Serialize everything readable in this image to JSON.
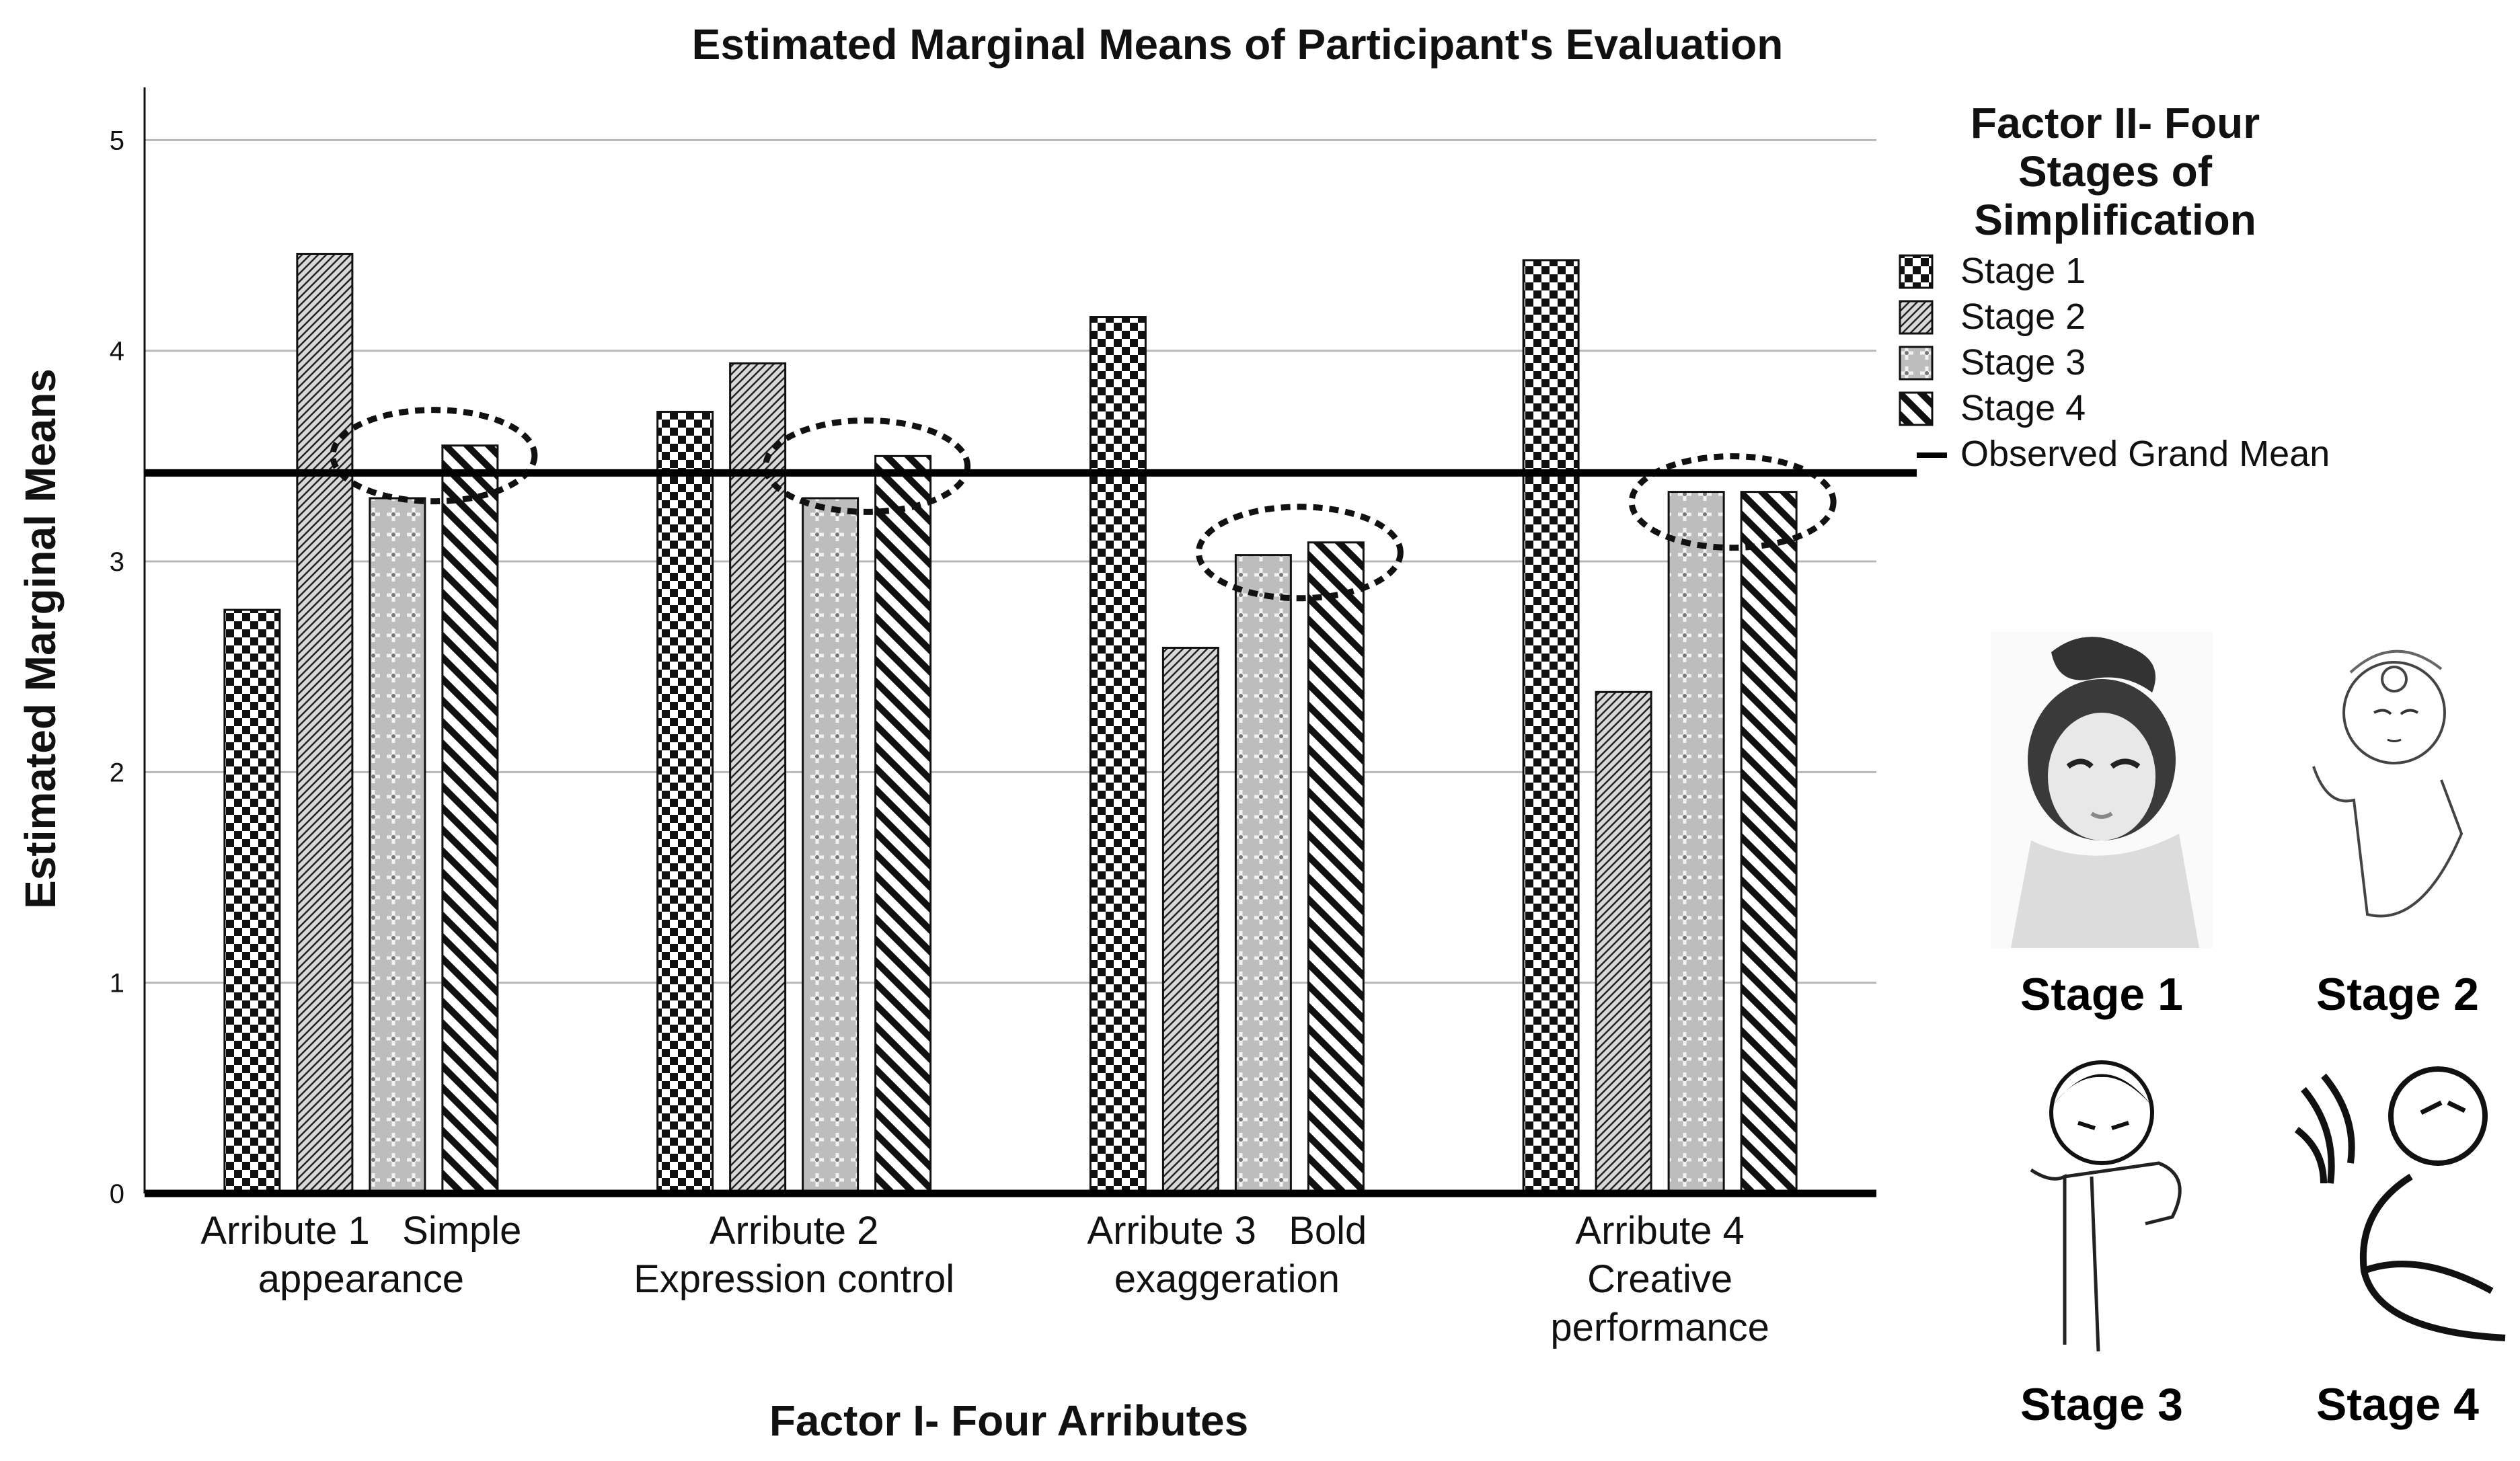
{
  "chart_data": {
    "type": "bar",
    "title": "Estimated Marginal Means of Participant's Evaluation",
    "xlabel": "Factor I- Four Arributes",
    "ylabel": "Estimated Marginal Means",
    "ylim": [
      0,
      5.25
    ],
    "yticks": [
      "0",
      "1",
      "2",
      "3",
      "4",
      "5"
    ],
    "categories": [
      [
        "Arribute 1   Simple",
        "appearance"
      ],
      [
        "Arribute 2",
        "Expression control"
      ],
      [
        "Arribute 3   Bold",
        "exaggeration"
      ],
      [
        "Arribute 4",
        "Creative",
        "performance"
      ]
    ],
    "series": [
      {
        "name": "Stage 1",
        "pattern": "checker",
        "values": [
          2.77,
          3.71,
          4.16,
          4.43
        ]
      },
      {
        "name": "Stage 2",
        "pattern": "diag-fine",
        "values": [
          4.46,
          3.94,
          2.59,
          2.38
        ]
      },
      {
        "name": "Stage 3",
        "pattern": "plus",
        "values": [
          3.3,
          3.3,
          3.03,
          3.33
        ]
      },
      {
        "name": "Stage 4",
        "pattern": "diag-wide",
        "values": [
          3.55,
          3.5,
          3.09,
          3.33
        ]
      }
    ],
    "grand_mean": 3.42,
    "grand_mean_label": "Observed Grand Mean",
    "legend_title": [
      "Factor II- Four",
      "Stages of",
      "Simplification"
    ],
    "legend_position": "right"
  },
  "illustrations": [
    {
      "label": "Stage 1",
      "icon": "opera-face-realistic-icon"
    },
    {
      "label": "Stage 2",
      "icon": "opera-face-line-icon"
    },
    {
      "label": "Stage 3",
      "icon": "stick-figure-simple-icon"
    },
    {
      "label": "Stage 4",
      "icon": "stick-figure-bold-icon"
    }
  ],
  "colors": {
    "ink": "#111111",
    "grid": "#b8b8b8",
    "fill": "#ffffff"
  }
}
